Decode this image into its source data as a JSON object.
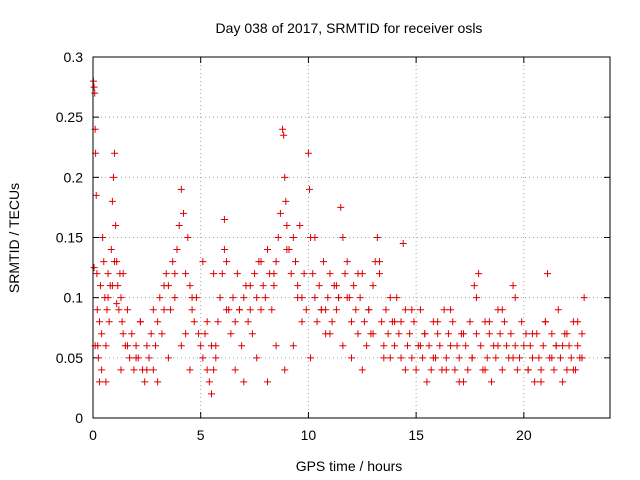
{
  "chart_data": {
    "type": "scatter",
    "title": "Day 038 of 2017, SRMTID for receiver osls",
    "xlabel": "GPS time / hours",
    "ylabel": "SRMTID / TECUs",
    "xlim": [
      0,
      24
    ],
    "ylim": [
      0,
      0.3
    ],
    "xticks": [
      0,
      5,
      10,
      15,
      20
    ],
    "xtick_labels": [
      "0",
      "5",
      "10",
      "15",
      "20"
    ],
    "yticks": [
      0,
      0.05,
      0.1,
      0.15,
      0.2,
      0.25,
      0.3
    ],
    "ytick_labels": [
      "0",
      "0.05",
      "0.1",
      "0.15",
      "0.2",
      "0.25",
      "0.3"
    ],
    "grid": true,
    "marker": "+",
    "color": "#e00000",
    "series": [
      {
        "name": "SRMTID",
        "x": [
          0.02,
          0.05,
          0.08,
          0.1,
          0.12,
          0.15,
          0.18,
          0.2,
          0.22,
          0.25,
          0.3,
          0.35,
          0.4,
          0.45,
          0.5,
          0.55,
          0.6,
          0.65,
          0.7,
          0.75,
          0.8,
          0.85,
          0.9,
          0.95,
          1.0,
          1.05,
          1.1,
          1.15,
          1.2,
          1.25,
          1.3,
          1.35,
          1.4,
          1.5,
          1.6,
          1.7,
          1.8,
          1.9,
          2.0,
          2.1,
          2.2,
          2.3,
          2.4,
          2.5,
          2.6,
          2.7,
          2.8,
          2.9,
          3.0,
          3.1,
          3.2,
          3.3,
          3.4,
          3.5,
          3.6,
          3.7,
          3.8,
          3.9,
          4.0,
          4.1,
          4.2,
          4.3,
          4.4,
          4.5,
          4.6,
          4.7,
          4.8,
          4.9,
          5.0,
          5.1,
          5.2,
          5.3,
          5.4,
          5.5,
          5.6,
          5.7,
          5.8,
          5.9,
          6.0,
          6.1,
          6.2,
          6.3,
          6.4,
          6.5,
          6.6,
          6.7,
          6.8,
          6.9,
          7.0,
          7.1,
          7.2,
          7.3,
          7.4,
          7.5,
          7.6,
          7.7,
          7.8,
          7.9,
          8.0,
          8.1,
          8.2,
          8.3,
          8.4,
          8.5,
          8.6,
          8.7,
          8.8,
          8.85,
          8.9,
          8.95,
          9.0,
          9.1,
          9.2,
          9.3,
          9.4,
          9.5,
          9.6,
          9.7,
          9.8,
          9.9,
          10.0,
          10.05,
          10.1,
          10.2,
          10.3,
          10.4,
          10.5,
          10.6,
          10.7,
          10.8,
          10.9,
          11.0,
          11.1,
          11.2,
          11.3,
          11.4,
          11.5,
          11.6,
          11.7,
          11.8,
          11.9,
          12.0,
          12.1,
          12.2,
          12.3,
          12.4,
          12.5,
          12.6,
          12.7,
          12.8,
          12.9,
          13.0,
          13.1,
          13.2,
          13.3,
          13.4,
          13.5,
          13.6,
          13.7,
          13.8,
          13.9,
          14.0,
          14.1,
          14.2,
          14.3,
          14.4,
          14.5,
          14.6,
          14.7,
          14.8,
          14.9,
          15.0,
          15.1,
          15.2,
          15.3,
          15.4,
          15.5,
          15.6,
          15.7,
          15.8,
          15.9,
          16.0,
          16.1,
          16.2,
          16.3,
          16.4,
          16.5,
          16.6,
          16.7,
          16.8,
          16.9,
          17.0,
          17.1,
          17.2,
          17.3,
          17.4,
          17.5,
          17.6,
          17.7,
          17.8,
          17.9,
          18.0,
          18.1,
          18.2,
          18.3,
          18.4,
          18.5,
          18.6,
          18.7,
          18.8,
          18.9,
          19.0,
          19.1,
          19.2,
          19.3,
          19.4,
          19.5,
          19.6,
          19.7,
          19.8,
          19.9,
          20.0,
          20.1,
          20.2,
          20.3,
          20.4,
          20.5,
          20.6,
          20.7,
          20.8,
          20.9,
          21.0,
          21.1,
          21.2,
          21.3,
          21.4,
          21.5,
          21.6,
          21.7,
          21.8,
          21.9,
          22.0,
          22.1,
          22.2,
          22.3,
          22.4,
          22.5,
          22.6,
          22.7,
          22.8,
          0.05,
          0.1,
          0.4,
          0.6,
          0.9,
          1.1,
          1.3,
          1.6,
          2.0,
          2.5,
          3.0,
          3.5,
          4.1,
          4.3,
          4.5,
          5.3,
          5.5,
          5.7,
          6.2,
          6.6,
          7.0,
          7.6,
          8.1,
          8.5,
          8.9,
          9.3,
          9.7,
          10.1,
          10.6,
          11.0,
          11.4,
          11.6,
          12.0,
          12.5,
          13.0,
          13.5,
          14.0,
          14.5,
          15.2,
          15.8,
          16.4,
          17.0,
          17.6,
          18.2,
          18.8,
          19.5,
          20.2,
          20.8,
          21.3,
          21.8,
          22.3,
          22.7,
          0.3,
          0.7,
          1.0,
          1.4,
          2.2,
          2.8,
          3.3,
          3.8,
          4.6,
          5.1,
          5.6,
          6.1,
          6.8,
          7.3,
          7.8,
          8.4,
          9.0,
          9.5,
          10.3,
          10.8,
          11.3,
          11.8,
          12.3,
          12.8,
          13.3,
          13.8,
          14.3,
          14.8,
          15.4,
          16.0,
          16.6,
          17.2,
          17.8,
          18.4,
          19.0,
          19.6,
          20.4,
          21.0,
          21.5,
          22.0,
          22.5
        ],
        "y": [
          0.28,
          0.275,
          0.27,
          0.24,
          0.22,
          0.185,
          0.12,
          0.09,
          0.06,
          0.05,
          0.08,
          0.11,
          0.07,
          0.15,
          0.13,
          0.1,
          0.06,
          0.09,
          0.12,
          0.08,
          0.11,
          0.14,
          0.18,
          0.2,
          0.22,
          0.16,
          0.13,
          0.11,
          0.09,
          0.12,
          0.1,
          0.08,
          0.07,
          0.06,
          0.09,
          0.05,
          0.07,
          0.04,
          0.06,
          0.05,
          0.08,
          0.04,
          0.03,
          0.06,
          0.05,
          0.07,
          0.04,
          0.06,
          0.08,
          0.1,
          0.07,
          0.09,
          0.12,
          0.11,
          0.09,
          0.13,
          0.1,
          0.14,
          0.16,
          0.19,
          0.17,
          0.12,
          0.15,
          0.11,
          0.09,
          0.08,
          0.1,
          0.07,
          0.06,
          0.05,
          0.07,
          0.04,
          0.03,
          0.02,
          0.04,
          0.06,
          0.08,
          0.1,
          0.12,
          0.165,
          0.13,
          0.09,
          0.07,
          0.1,
          0.08,
          0.12,
          0.09,
          0.06,
          0.1,
          0.11,
          0.08,
          0.09,
          0.07,
          0.12,
          0.1,
          0.13,
          0.09,
          0.11,
          0.1,
          0.14,
          0.12,
          0.09,
          0.11,
          0.13,
          0.15,
          0.17,
          0.24,
          0.235,
          0.2,
          0.18,
          0.16,
          0.14,
          0.12,
          0.15,
          0.13,
          0.11,
          0.16,
          0.1,
          0.12,
          0.09,
          0.22,
          0.19,
          0.15,
          0.12,
          0.1,
          0.08,
          0.11,
          0.09,
          0.13,
          0.07,
          0.1,
          0.12,
          0.08,
          0.11,
          0.09,
          0.1,
          0.175,
          0.15,
          0.12,
          0.13,
          0.1,
          0.08,
          0.11,
          0.09,
          0.07,
          0.1,
          0.12,
          0.08,
          0.06,
          0.09,
          0.07,
          0.11,
          0.13,
          0.15,
          0.12,
          0.08,
          0.06,
          0.09,
          0.07,
          0.05,
          0.08,
          0.06,
          0.1,
          0.07,
          0.05,
          0.145,
          0.09,
          0.06,
          0.07,
          0.05,
          0.08,
          0.04,
          0.06,
          0.09,
          0.05,
          0.07,
          0.03,
          0.06,
          0.04,
          0.08,
          0.05,
          0.07,
          0.06,
          0.04,
          0.09,
          0.05,
          0.07,
          0.06,
          0.08,
          0.04,
          0.06,
          0.05,
          0.07,
          0.03,
          0.06,
          0.04,
          0.08,
          0.05,
          0.11,
          0.07,
          0.12,
          0.06,
          0.04,
          0.08,
          0.05,
          0.07,
          0.03,
          0.06,
          0.05,
          0.09,
          0.07,
          0.04,
          0.08,
          0.06,
          0.05,
          0.07,
          0.11,
          0.06,
          0.04,
          0.05,
          0.08,
          0.06,
          0.07,
          0.04,
          0.06,
          0.05,
          0.03,
          0.07,
          0.05,
          0.04,
          0.06,
          0.08,
          0.12,
          0.05,
          0.07,
          0.04,
          0.06,
          0.09,
          0.05,
          0.03,
          0.07,
          0.04,
          0.06,
          0.05,
          0.08,
          0.04,
          0.06,
          0.05,
          0.07,
          0.1,
          0.125,
          0.06,
          0.04,
          0.03,
          0.11,
          0.095,
          0.04,
          0.06,
          0.05,
          0.04,
          0.03,
          0.05,
          0.06,
          0.07,
          0.04,
          0.08,
          0.06,
          0.05,
          0.09,
          0.04,
          0.03,
          0.05,
          0.03,
          0.06,
          0.04,
          0.06,
          0.08,
          0.05,
          0.09,
          0.07,
          0.1,
          0.06,
          0.05,
          0.04,
          0.07,
          0.05,
          0.08,
          0.04,
          0.06,
          0.05,
          0.04,
          0.03,
          0.05,
          0.04,
          0.06,
          0.05,
          0.04,
          0.03,
          0.05,
          0.06,
          0.04,
          0.05,
          0.03,
          0.1,
          0.13,
          0.12,
          0.08,
          0.09,
          0.11,
          0.12,
          0.1,
          0.13,
          0.12,
          0.14,
          0.09,
          0.11,
          0.13,
          0.12,
          0.14,
          0.1,
          0.15,
          0.09,
          0.11,
          0.1,
          0.12,
          0.09,
          0.13,
          0.1,
          0.08,
          0.09,
          0.07,
          0.08,
          0.09,
          0.07,
          0.1,
          0.08,
          0.09,
          0.1,
          0.07,
          0.08,
          0.06,
          0.07,
          0.08
        ]
      }
    ]
  }
}
